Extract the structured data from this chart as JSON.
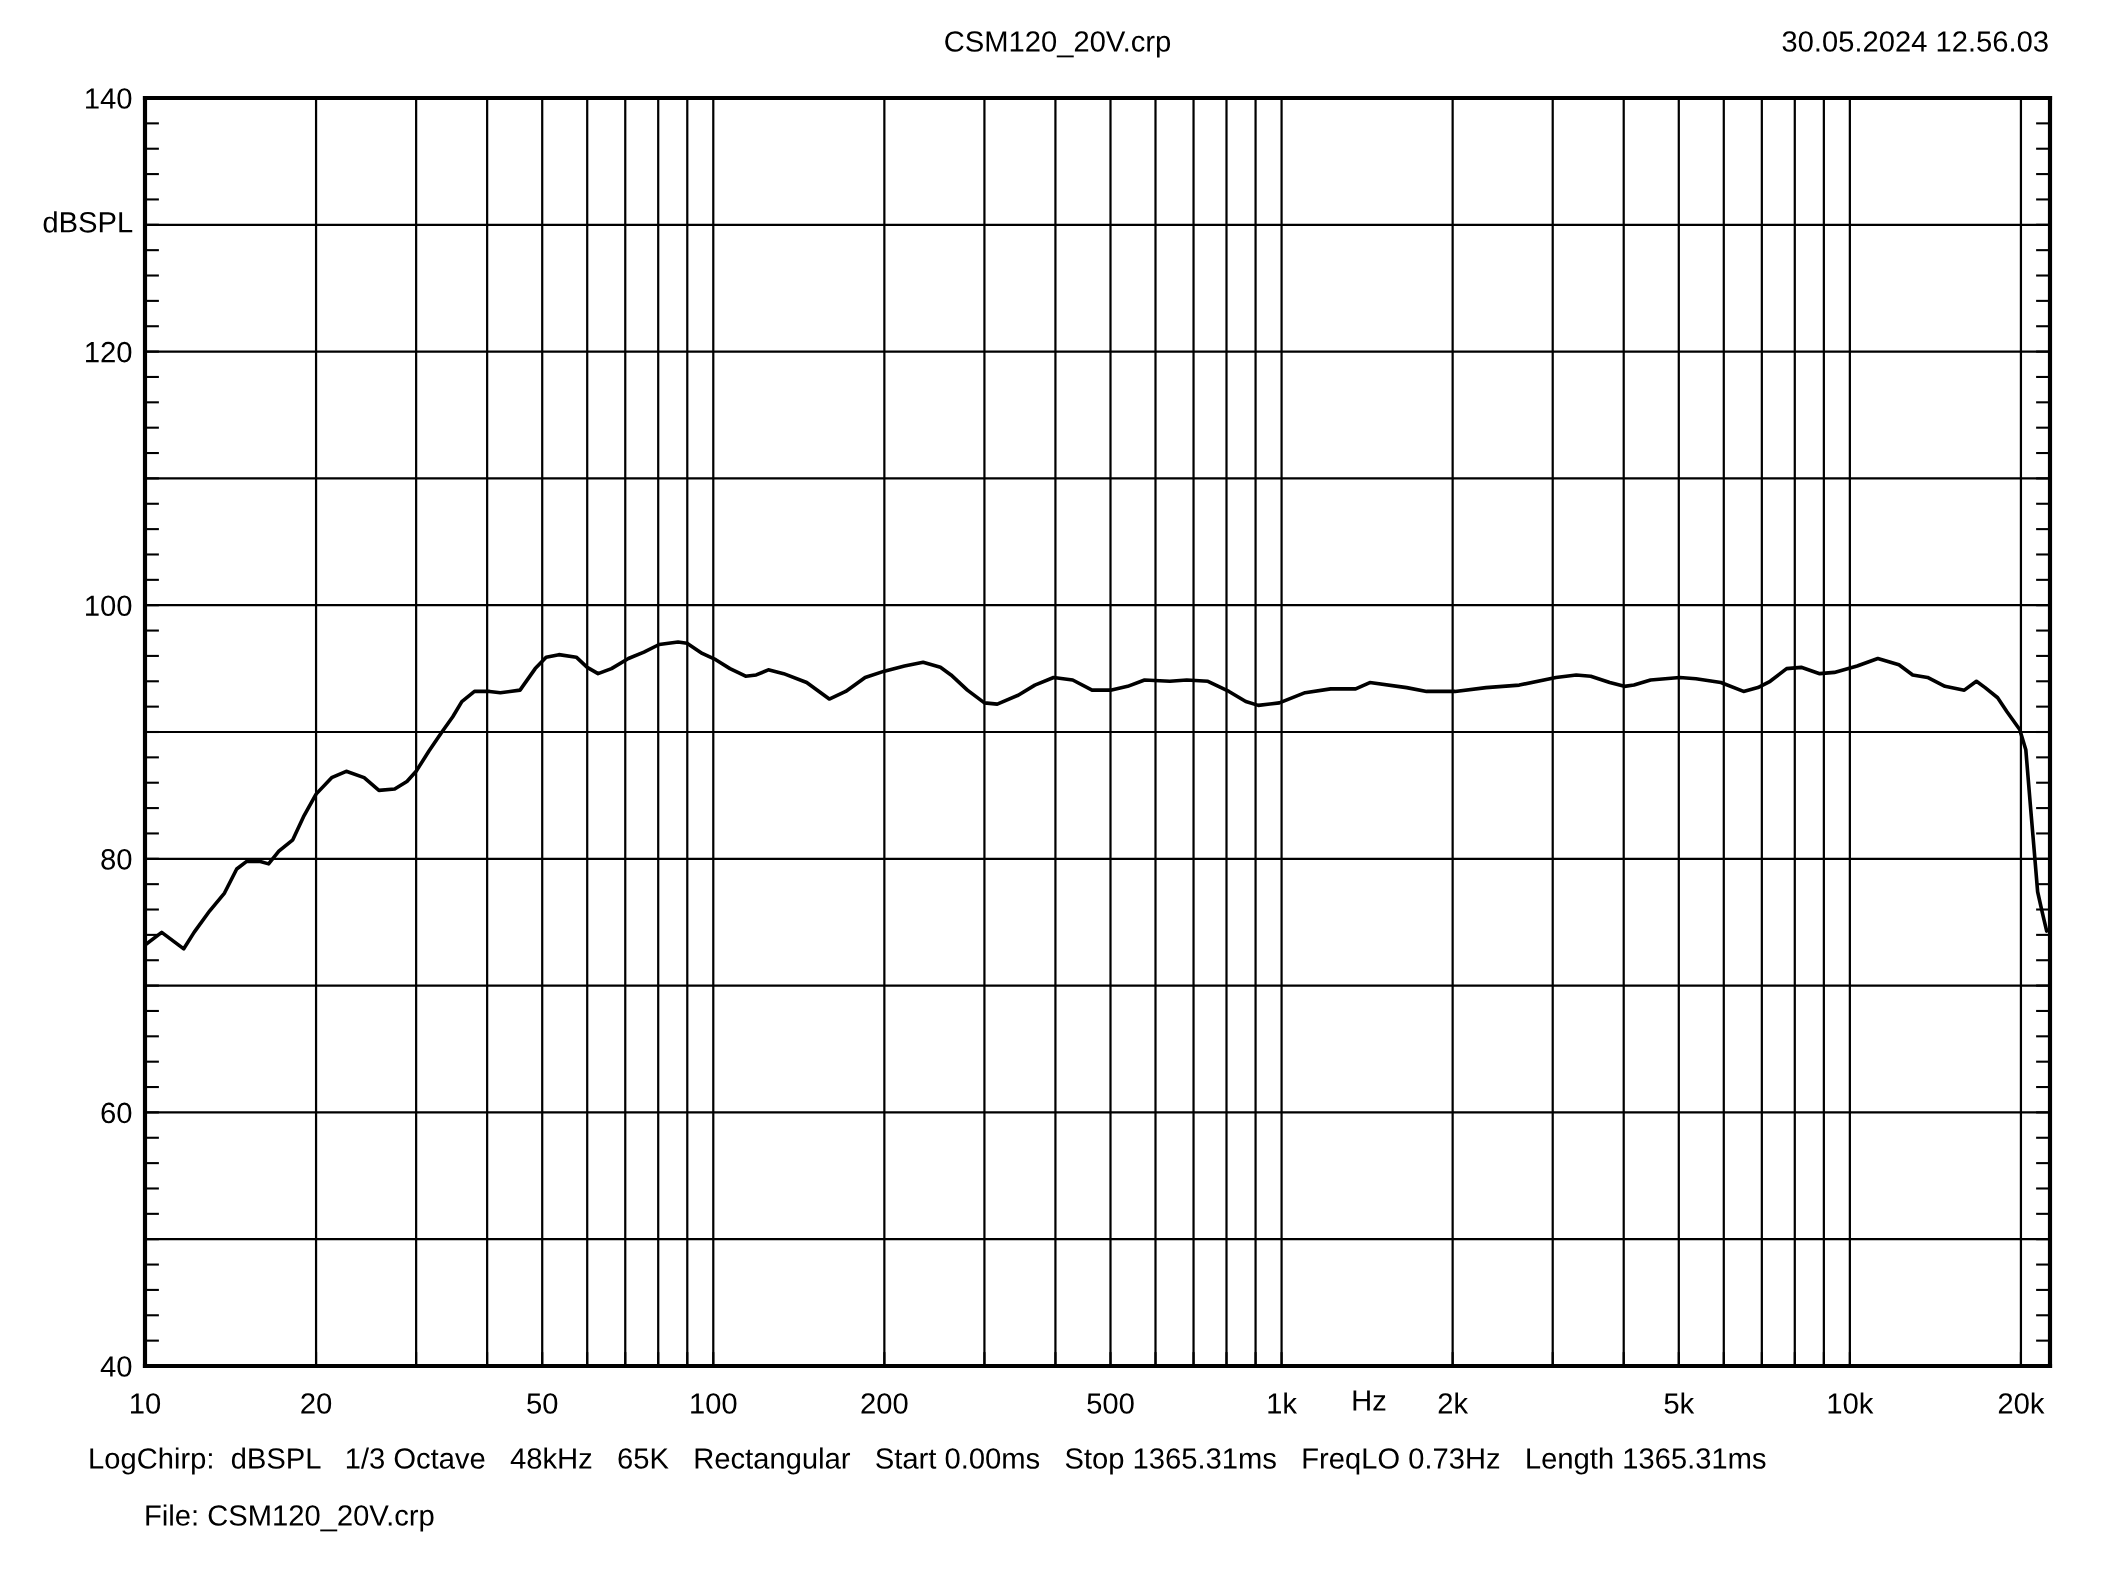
{
  "chart_data": {
    "type": "line",
    "title": "CSM120_20V.crp",
    "xlabel": "Hz",
    "ylabel": "dBSPL",
    "annotations": [
      "30.05.2024 12.56.03",
      "LogChirp:  dBSPL   1/3 Octave   48kHz   65K   Rectangular   Start 0.00ms   Stop 1365.31ms   FreqLO 0.73Hz   Length 1365.31ms",
      "File: CSM120_20V.crp"
    ],
    "x": [
      10,
      10.7,
      11.7,
      12.2,
      13.0,
      13.8,
      14.5,
      15.1,
      15.9,
      16.5,
      17.2,
      18.2,
      19.0,
      20.0,
      21.3,
      22.6,
      24.3,
      25.8,
      27.5,
      28.9,
      30.0,
      31.6,
      33.3,
      34.8,
      36.1,
      38.0,
      40.4,
      42.2,
      45.7,
      48.6,
      50.8,
      53.5,
      57.4,
      60.0,
      62.7,
      66.2,
      70.9,
      75.5,
      80.3,
      86.7,
      89.9,
      95.6,
      101,
      107,
      114,
      119,
      125,
      133,
      146,
      160,
      171,
      185,
      200,
      217,
      234,
      251,
      262,
      280,
      300,
      316,
      344,
      368,
      397,
      429,
      464,
      500,
      536,
      574,
      636,
      681,
      742,
      808,
      865,
      910,
      991,
      1100,
      1220,
      1350,
      1430,
      1660,
      1800,
      2020,
      2290,
      2620,
      3040,
      3300,
      3500,
      3780,
      4010,
      4170,
      4460,
      5020,
      5360,
      5930,
      6500,
      6890,
      7240,
      7740,
      8210,
      8850,
      9390,
      10300,
      11200,
      12200,
      12900,
      13700,
      14700,
      15900,
      16700,
      17300,
      18200,
      18900,
      19900,
      20400,
      20800,
      21100,
      21400,
      21800,
      22200
    ],
    "series": [
      {
        "color": "#000000",
        "values": [
          73.2,
          74.2,
          72.9,
          74.2,
          75.9,
          77.3,
          79.2,
          79.8,
          79.8,
          79.6,
          80.6,
          81.5,
          83.3,
          85.1,
          86.4,
          86.9,
          86.4,
          85.4,
          85.5,
          86.1,
          86.9,
          88.5,
          90.0,
          91.2,
          92.4,
          93.2,
          93.2,
          93.1,
          93.3,
          95.0,
          95.9,
          96.1,
          95.9,
          95.1,
          94.6,
          95.0,
          95.8,
          96.3,
          96.9,
          97.1,
          97.0,
          96.2,
          95.7,
          95.0,
          94.4,
          94.5,
          94.9,
          94.6,
          93.9,
          92.6,
          93.2,
          94.3,
          94.8,
          95.2,
          95.5,
          95.1,
          94.5,
          93.3,
          92.3,
          92.2,
          92.9,
          93.7,
          94.3,
          94.1,
          93.3,
          93.3,
          93.6,
          94.1,
          94.0,
          94.1,
          94.0,
          93.2,
          92.4,
          92.1,
          92.3,
          93.1,
          93.4,
          93.4,
          93.9,
          93.5,
          93.2,
          93.2,
          93.5,
          93.7,
          94.3,
          94.5,
          94.4,
          93.9,
          93.6,
          93.7,
          94.1,
          94.3,
          94.2,
          93.9,
          93.2,
          93.5,
          94.0,
          95.0,
          95.1,
          94.6,
          94.7,
          95.2,
          95.8,
          95.3,
          94.5,
          94.3,
          93.6,
          93.3,
          94.0,
          93.5,
          92.7,
          91.6,
          90.2,
          88.6,
          84.0,
          80.7,
          77.4,
          75.8,
          74.3
        ]
      }
    ],
    "xlim": [
      10,
      22500
    ],
    "ylim": [
      40,
      140
    ],
    "xticks": [
      10,
      20,
      {
        "value": 30,
        "label": null
      },
      {
        "value": 40,
        "label": null
      },
      50,
      {
        "value": 60,
        "label": null
      },
      {
        "value": 70,
        "label": null
      },
      {
        "value": 80,
        "label": null
      },
      {
        "value": 90,
        "label": null
      },
      100,
      200,
      {
        "value": 300,
        "label": null
      },
      {
        "value": 400,
        "label": null
      },
      500,
      {
        "value": 600,
        "label": null
      },
      {
        "value": 700,
        "label": null
      },
      {
        "value": 800,
        "label": null
      },
      {
        "value": 900,
        "label": null
      },
      {
        "value": 1000,
        "label": "1k"
      },
      {
        "value": 2000,
        "label": "2k"
      },
      {
        "value": 3000,
        "label": null
      },
      {
        "value": 4000,
        "label": null
      },
      {
        "value": 5000,
        "label": "5k"
      },
      {
        "value": 6000,
        "label": null
      },
      {
        "value": 7000,
        "label": null
      },
      {
        "value": 8000,
        "label": null
      },
      {
        "value": 9000,
        "label": null
      },
      {
        "value": 10000,
        "label": "10k"
      },
      {
        "value": 20000,
        "label": "20k"
      }
    ],
    "yticks": [
      40,
      {
        "value": 50,
        "label": null
      },
      60,
      {
        "value": 70,
        "label": null
      },
      80,
      {
        "value": 90,
        "label": null
      },
      100,
      {
        "value": 110,
        "label": null
      },
      120,
      {
        "value": 130,
        "label": null
      },
      140
    ],
    "log": "x",
    "grid": true,
    "line_style": "solid"
  }
}
